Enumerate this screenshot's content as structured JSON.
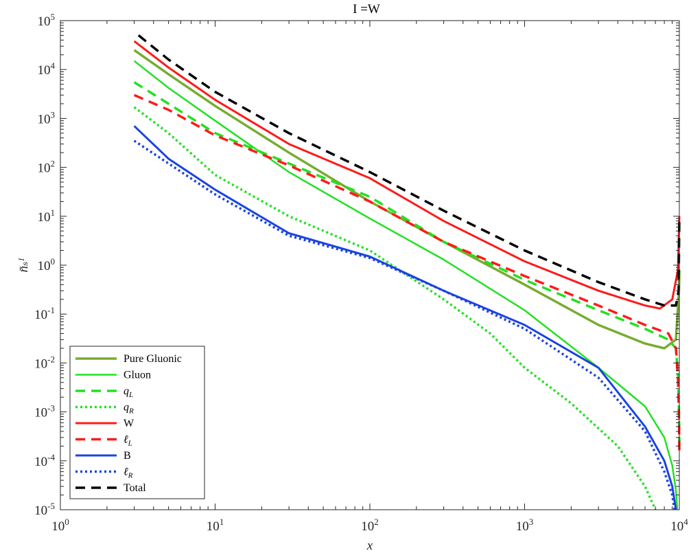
{
  "chart_data": {
    "type": "line",
    "title": "I =W",
    "xlabel": "x",
    "ylabel": "n̄ₛᴵ",
    "xscale": "log",
    "yscale": "log",
    "xlim": [
      1,
      10000
    ],
    "ylim": [
      1e-05,
      100000
    ],
    "grid": false,
    "legend_position": "bottom-left",
    "x_ticks": [
      {
        "base": "10",
        "exp": "0"
      },
      {
        "base": "10",
        "exp": "1"
      },
      {
        "base": "10",
        "exp": "2"
      },
      {
        "base": "10",
        "exp": "3"
      },
      {
        "base": "10",
        "exp": "4"
      }
    ],
    "y_ticks": [
      {
        "base": "10",
        "exp": "-5"
      },
      {
        "base": "10",
        "exp": "-4"
      },
      {
        "base": "10",
        "exp": "-3"
      },
      {
        "base": "10",
        "exp": "-2"
      },
      {
        "base": "10",
        "exp": "-1"
      },
      {
        "base": "10",
        "exp": "0"
      },
      {
        "base": "10",
        "exp": "1"
      },
      {
        "base": "10",
        "exp": "2"
      },
      {
        "base": "10",
        "exp": "3"
      },
      {
        "base": "10",
        "exp": "4"
      },
      {
        "base": "10",
        "exp": "5"
      }
    ],
    "series": [
      {
        "name": "Pure Gluonic",
        "color": "#77AC30",
        "style": "solid",
        "width": 3.5,
        "points": [
          [
            3,
            25000
          ],
          [
            5,
            8000
          ],
          [
            10,
            1800
          ],
          [
            30,
            200
          ],
          [
            100,
            20
          ],
          [
            300,
            3
          ],
          [
            1000,
            0.4
          ],
          [
            3000,
            0.06
          ],
          [
            6000,
            0.025
          ],
          [
            8000,
            0.02
          ],
          [
            9500,
            0.03
          ],
          [
            9950,
            0.3
          ],
          [
            10000,
            0.8
          ]
        ]
      },
      {
        "name": "Gluon",
        "color": "#22E022",
        "style": "solid",
        "width": 2.5,
        "points": [
          [
            3,
            15000
          ],
          [
            5,
            4200
          ],
          [
            10,
            900
          ],
          [
            30,
            80
          ],
          [
            100,
            9
          ],
          [
            300,
            1.3
          ],
          [
            1000,
            0.12
          ],
          [
            3000,
            0.008
          ],
          [
            6000,
            0.0013
          ],
          [
            8000,
            0.0003
          ],
          [
            9000,
            8e-05
          ],
          [
            9500,
            2.5e-05
          ],
          [
            9700,
            1e-05
          ]
        ]
      },
      {
        "name": "qL",
        "color": "#22E022",
        "style": "dashed",
        "width": 3.5,
        "points": [
          [
            3,
            5500
          ],
          [
            5,
            2000
          ],
          [
            10,
            500
          ],
          [
            30,
            120
          ],
          [
            100,
            25
          ],
          [
            300,
            3
          ],
          [
            1000,
            0.5
          ],
          [
            3000,
            0.12
          ],
          [
            6000,
            0.05
          ],
          [
            8500,
            0.03
          ],
          [
            9500,
            0.02
          ],
          [
            9800,
            0.006
          ],
          [
            9950,
            0.001
          ],
          [
            10000,
            0.0002
          ]
        ]
      },
      {
        "name": "qR",
        "color": "#22E022",
        "style": "dotted",
        "width": 3.5,
        "points": [
          [
            3,
            1700
          ],
          [
            5,
            500
          ],
          [
            10,
            70
          ],
          [
            30,
            10
          ],
          [
            100,
            2
          ],
          [
            300,
            0.2
          ],
          [
            600,
            0.04
          ],
          [
            1000,
            0.008
          ],
          [
            2000,
            0.0015
          ],
          [
            4000,
            0.0002
          ],
          [
            6000,
            3e-05
          ],
          [
            7000,
            1e-05
          ]
        ]
      },
      {
        "name": "W",
        "color": "#FF1A1A",
        "style": "solid",
        "width": 3,
        "points": [
          [
            3,
            38000
          ],
          [
            5,
            11000
          ],
          [
            10,
            2400
          ],
          [
            30,
            300
          ],
          [
            100,
            60
          ],
          [
            300,
            8
          ],
          [
            1000,
            1.2
          ],
          [
            3000,
            0.3
          ],
          [
            6000,
            0.15
          ],
          [
            7500,
            0.13
          ],
          [
            9000,
            0.2
          ],
          [
            9800,
            0.8
          ],
          [
            10000,
            10
          ]
        ]
      },
      {
        "name": "ℓL",
        "color": "#FF1A1A",
        "style": "dashed",
        "width": 3.5,
        "points": [
          [
            3,
            3000
          ],
          [
            5,
            1500
          ],
          [
            10,
            450
          ],
          [
            30,
            110
          ],
          [
            100,
            20
          ],
          [
            300,
            3
          ],
          [
            1000,
            0.6
          ],
          [
            3000,
            0.15
          ],
          [
            6000,
            0.06
          ],
          [
            8500,
            0.04
          ],
          [
            9500,
            0.02
          ],
          [
            9800,
            0.005
          ],
          [
            9950,
            0.0008
          ],
          [
            10000,
            0.00015
          ]
        ]
      },
      {
        "name": "B",
        "color": "#1A43E0",
        "style": "solid",
        "width": 3,
        "points": [
          [
            3,
            700
          ],
          [
            5,
            150
          ],
          [
            10,
            35
          ],
          [
            30,
            4.5
          ],
          [
            100,
            1.5
          ],
          [
            300,
            0.3
          ],
          [
            1000,
            0.06
          ],
          [
            3000,
            0.008
          ],
          [
            6000,
            0.0005
          ],
          [
            8000,
            0.0001
          ],
          [
            9000,
            3e-05
          ],
          [
            9500,
            1e-05
          ]
        ]
      },
      {
        "name": "ℓR",
        "color": "#1A43E0",
        "style": "dotted",
        "width": 3.5,
        "points": [
          [
            3,
            350
          ],
          [
            5,
            120
          ],
          [
            10,
            28
          ],
          [
            30,
            4
          ],
          [
            100,
            1.4
          ],
          [
            300,
            0.3
          ],
          [
            1000,
            0.05
          ],
          [
            3000,
            0.005
          ],
          [
            6000,
            0.0004
          ],
          [
            8000,
            6e-05
          ],
          [
            9000,
            2e-05
          ],
          [
            9300,
            1e-05
          ]
        ]
      },
      {
        "name": "Total",
        "color": "#000000",
        "style": "dashed",
        "width": 3.5,
        "points": [
          [
            3.2,
            50000
          ],
          [
            5,
            16000
          ],
          [
            10,
            3500
          ],
          [
            30,
            500
          ],
          [
            100,
            80
          ],
          [
            300,
            13
          ],
          [
            1000,
            2
          ],
          [
            3000,
            0.45
          ],
          [
            6000,
            0.2
          ],
          [
            8000,
            0.15
          ],
          [
            9500,
            0.15
          ],
          [
            9900,
            0.3
          ],
          [
            10000,
            10
          ]
        ]
      }
    ],
    "legend": [
      {
        "label": "Pure Gluonic",
        "color": "#77AC30",
        "style": "solid",
        "width": 3.5
      },
      {
        "label": "Gluon",
        "color": "#22E022",
        "style": "solid",
        "width": 2.5
      },
      {
        "base": "q",
        "sub": "L",
        "color": "#22E022",
        "style": "dashed",
        "width": 3.5
      },
      {
        "base": "q",
        "sub": "R",
        "color": "#22E022",
        "style": "dotted",
        "width": 3.5
      },
      {
        "label": "W",
        "color": "#FF1A1A",
        "style": "solid",
        "width": 3
      },
      {
        "base": "ℓ",
        "sub": "L",
        "color": "#FF1A1A",
        "style": "dashed",
        "width": 3.5
      },
      {
        "label": "B",
        "color": "#1A43E0",
        "style": "solid",
        "width": 3
      },
      {
        "base": "ℓ",
        "sub": "R",
        "color": "#1A43E0",
        "style": "dotted",
        "width": 3.5
      },
      {
        "label": "Total",
        "color": "#000000",
        "style": "dashed",
        "width": 3.5
      }
    ]
  }
}
